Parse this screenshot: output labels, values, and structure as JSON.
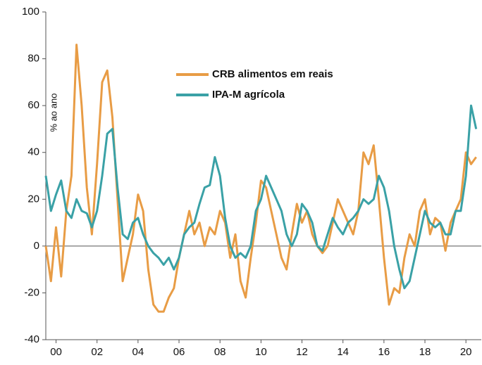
{
  "chart_data": {
    "type": "line",
    "y_label": "% ao ano",
    "x": [
      2000,
      2000.25,
      2000.5,
      2000.75,
      2001,
      2001.25,
      2001.5,
      2001.75,
      2002,
      2002.25,
      2002.5,
      2002.75,
      2003,
      2003.25,
      2003.5,
      2003.75,
      2004,
      2004.25,
      2004.5,
      2004.75,
      2005,
      2005.25,
      2005.5,
      2005.75,
      2006,
      2006.25,
      2006.5,
      2006.75,
      2007,
      2007.25,
      2007.5,
      2007.75,
      2008,
      2008.25,
      2008.5,
      2008.75,
      2009,
      2009.25,
      2009.5,
      2009.75,
      2010,
      2010.25,
      2010.5,
      2010.75,
      2011,
      2011.25,
      2011.5,
      2011.75,
      2012,
      2012.25,
      2012.5,
      2012.75,
      2013,
      2013.25,
      2013.5,
      2013.75,
      2014,
      2014.25,
      2014.5,
      2014.75,
      2015,
      2015.25,
      2015.5,
      2015.75,
      2016,
      2016.25,
      2016.5,
      2016.75,
      2017,
      2017.25,
      2017.5,
      2017.75,
      2018,
      2018.25,
      2018.5,
      2018.75,
      2019,
      2019.25,
      2019.5,
      2019.75,
      2020,
      2020.25,
      2020.5,
      2020.75,
      2021
    ],
    "series": [
      {
        "name": "CRB alimentos em reais",
        "color": "#e89c45",
        "values": [
          0,
          -15,
          8,
          -13,
          15,
          30,
          86,
          60,
          25,
          5,
          35,
          70,
          75,
          55,
          20,
          -15,
          -5,
          5,
          22,
          15,
          -10,
          -25,
          -28,
          -28,
          -22,
          -18,
          -5,
          5,
          15,
          5,
          10,
          0,
          8,
          5,
          15,
          10,
          -5,
          5,
          -15,
          -22,
          -5,
          10,
          28,
          25,
          15,
          5,
          -5,
          -10,
          5,
          18,
          10,
          15,
          5,
          0,
          -3,
          0,
          10,
          20,
          15,
          10,
          5,
          15,
          40,
          35,
          43,
          20,
          -5,
          -25,
          -18,
          -20,
          -5,
          5,
          0,
          15,
          20,
          5,
          12,
          10,
          -2,
          10,
          15,
          20,
          40,
          35,
          38
        ]
      },
      {
        "name": "IPA-M agrícola",
        "color": "#3aa1a6",
        "values": [
          30,
          15,
          22,
          28,
          15,
          12,
          20,
          15,
          14,
          8,
          15,
          30,
          48,
          50,
          25,
          5,
          3,
          10,
          12,
          5,
          0,
          -3,
          -5,
          -8,
          -5,
          -10,
          -5,
          5,
          8,
          10,
          18,
          25,
          26,
          38,
          30,
          12,
          0,
          -5,
          -3,
          -5,
          0,
          15,
          20,
          30,
          25,
          20,
          15,
          5,
          0,
          5,
          18,
          15,
          10,
          0,
          -2,
          5,
          12,
          8,
          5,
          10,
          12,
          15,
          20,
          18,
          20,
          30,
          25,
          15,
          0,
          -10,
          -18,
          -15,
          -5,
          5,
          15,
          10,
          8,
          10,
          5,
          5,
          15,
          15,
          30,
          60,
          50
        ]
      }
    ],
    "xlim": [
      2000,
      2021.25
    ],
    "xticks": [
      {
        "value": 2000.5,
        "label": "00"
      },
      {
        "value": 2002.5,
        "label": "02"
      },
      {
        "value": 2004.5,
        "label": "04"
      },
      {
        "value": 2006.5,
        "label": "06"
      },
      {
        "value": 2008.5,
        "label": "08"
      },
      {
        "value": 2010.5,
        "label": "10"
      },
      {
        "value": 2012.5,
        "label": "12"
      },
      {
        "value": 2014.5,
        "label": "14"
      },
      {
        "value": 2016.5,
        "label": "16"
      },
      {
        "value": 2018.5,
        "label": "18"
      },
      {
        "value": 2020.5,
        "label": "20"
      }
    ],
    "ylim": [
      -40,
      100
    ],
    "yticks": [
      -40,
      -20,
      0,
      20,
      40,
      60,
      80,
      100
    ],
    "grid": false
  }
}
